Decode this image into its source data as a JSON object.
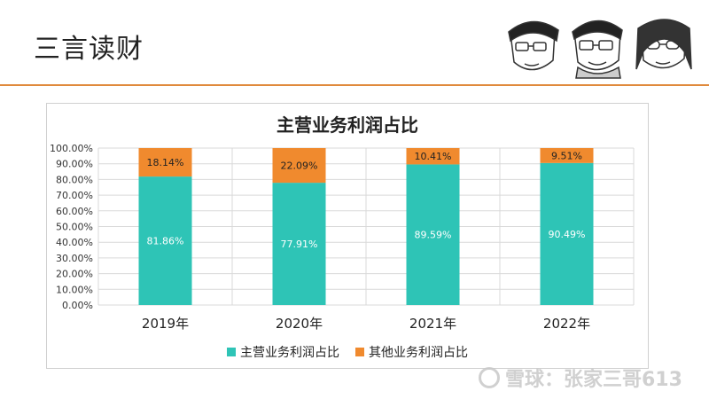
{
  "header": {
    "title": "三言读财"
  },
  "watermark": {
    "text": "雪球：张家三哥613"
  },
  "colors": {
    "accent": "#e08a3c",
    "main": "#2ec4b6",
    "other": "#f08a2e"
  },
  "chart_data": {
    "type": "bar",
    "stacked": true,
    "title": "主营业务利润占比",
    "categories": [
      "2019年",
      "2020年",
      "2021年",
      "2022年"
    ],
    "series": [
      {
        "name": "主营业务利润占比",
        "values": [
          81.86,
          77.91,
          89.59,
          90.49
        ],
        "labels": [
          "81.86%",
          "77.91%",
          "89.59%",
          "90.49%"
        ]
      },
      {
        "name": "其他业务利润占比",
        "values": [
          18.14,
          22.09,
          10.41,
          9.51
        ],
        "labels": [
          "18.14%",
          "22.09%",
          "10.41%",
          "9.51%"
        ]
      }
    ],
    "y_ticks": [
      "0.00%",
      "10.00%",
      "20.00%",
      "30.00%",
      "40.00%",
      "50.00%",
      "60.00%",
      "70.00%",
      "80.00%",
      "90.00%",
      "100.00%"
    ],
    "ylim": [
      0,
      100
    ],
    "grid": true,
    "legend": "bottom"
  }
}
